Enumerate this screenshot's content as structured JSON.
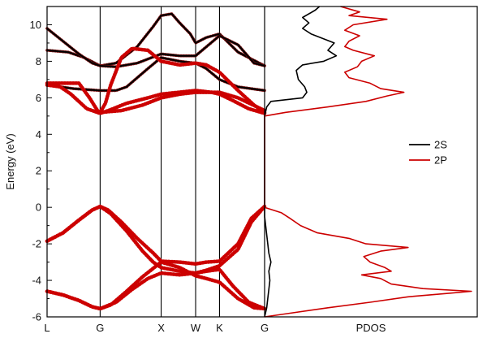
{
  "chart_data": [
    {
      "type": "line",
      "panel": "band-structure",
      "ylabel": "Energy (eV)",
      "ylim": [
        -6,
        11
      ],
      "y_ticks": [
        -6,
        -4,
        -2,
        0,
        2,
        4,
        6,
        8,
        10
      ],
      "k_points": [
        "L",
        "G",
        "X",
        "W",
        "K",
        "G"
      ],
      "x": [
        0,
        1,
        2.15,
        2.8,
        3.25,
        4.1
      ],
      "series": [
        {
          "color": "#000000",
          "points": [
            [
              0,
              8.6
            ],
            [
              0.4,
              8.5
            ],
            [
              0.7,
              8.2
            ],
            [
              1,
              7.75
            ],
            [
              1.3,
              7.9
            ],
            [
              1.7,
              8.8
            ],
            [
              2.0,
              9.9
            ],
            [
              2.15,
              10.5
            ],
            [
              2.35,
              10.6
            ],
            [
              2.5,
              10.1
            ],
            [
              2.7,
              9.5
            ],
            [
              2.8,
              9.0
            ],
            [
              3.0,
              9.3
            ],
            [
              3.25,
              9.5
            ],
            [
              3.6,
              8.5
            ],
            [
              4.1,
              7.75
            ]
          ]
        },
        {
          "color": "#000000",
          "points": [
            [
              0,
              9.8
            ],
            [
              0.3,
              9.1
            ],
            [
              0.6,
              8.4
            ],
            [
              0.85,
              7.9
            ],
            [
              1,
              7.75
            ],
            [
              1.3,
              7.7
            ],
            [
              1.7,
              7.9
            ],
            [
              2.15,
              8.4
            ],
            [
              2.5,
              8.3
            ],
            [
              2.8,
              8.3
            ],
            [
              3.25,
              9.4
            ],
            [
              3.6,
              8.9
            ],
            [
              3.9,
              7.9
            ],
            [
              4.1,
              7.75
            ]
          ]
        },
        {
          "color": "#000000",
          "points": [
            [
              0,
              6.7
            ],
            [
              0.5,
              6.5
            ],
            [
              1,
              6.4
            ],
            [
              1.3,
              6.4
            ],
            [
              1.5,
              6.6
            ],
            [
              1.9,
              7.6
            ],
            [
              2.15,
              8.2
            ],
            [
              2.5,
              8.0
            ],
            [
              2.8,
              7.9
            ],
            [
              3.0,
              7.6
            ],
            [
              3.25,
              7.0
            ],
            [
              3.6,
              6.6
            ],
            [
              4.1,
              6.4
            ]
          ]
        },
        {
          "color": "#cc0000",
          "points": [
            [
              0,
              6.7
            ],
            [
              0.25,
              6.6
            ],
            [
              0.45,
              6.2
            ],
            [
              0.75,
              5.4
            ],
            [
              1,
              5.15
            ],
            [
              1.2,
              5.35
            ],
            [
              1.5,
              5.7
            ],
            [
              1.9,
              6.0
            ],
            [
              2.15,
              6.2
            ],
            [
              2.8,
              6.4
            ],
            [
              3.1,
              6.3
            ],
            [
              3.25,
              6.2
            ],
            [
              3.5,
              5.85
            ],
            [
              3.8,
              5.4
            ],
            [
              4.1,
              5.15
            ]
          ]
        },
        {
          "color": "#cc0000",
          "points": [
            [
              0,
              6.8
            ],
            [
              0.3,
              6.8
            ],
            [
              0.6,
              6.8
            ],
            [
              0.8,
              6.0
            ],
            [
              0.95,
              5.3
            ],
            [
              1,
              5.2
            ],
            [
              1.1,
              5.7
            ],
            [
              1.2,
              6.7
            ],
            [
              1.4,
              8.2
            ],
            [
              1.6,
              8.7
            ],
            [
              1.9,
              8.6
            ],
            [
              2.15,
              8.0
            ],
            [
              2.5,
              7.8
            ],
            [
              2.8,
              7.9
            ],
            [
              3.0,
              7.8
            ],
            [
              3.25,
              7.4
            ],
            [
              3.6,
              6.4
            ],
            [
              3.9,
              5.6
            ],
            [
              4.1,
              5.2
            ]
          ]
        },
        {
          "color": "#cc0000",
          "points": [
            [
              1,
              5.2
            ],
            [
              1.4,
              5.3
            ],
            [
              1.8,
              5.6
            ],
            [
              2.15,
              6.0
            ],
            [
              2.5,
              6.2
            ],
            [
              2.8,
              6.3
            ],
            [
              3.25,
              6.3
            ],
            [
              3.6,
              6.0
            ],
            [
              4.1,
              5.3
            ]
          ]
        },
        {
          "color": "#cc0000",
          "points": [
            [
              0,
              -1.85
            ],
            [
              0.3,
              -1.4
            ],
            [
              0.6,
              -0.7
            ],
            [
              0.85,
              -0.15
            ],
            [
              1,
              0.05
            ],
            [
              1.15,
              -0.15
            ],
            [
              1.4,
              -0.8
            ],
            [
              1.7,
              -1.7
            ],
            [
              2.0,
              -2.5
            ],
            [
              2.15,
              -2.95
            ],
            [
              2.5,
              -3.0
            ],
            [
              2.8,
              -3.1
            ],
            [
              3.0,
              -3.0
            ],
            [
              3.25,
              -2.95
            ],
            [
              3.6,
              -2.0
            ],
            [
              3.85,
              -0.6
            ],
            [
              4.1,
              0.05
            ]
          ]
        },
        {
          "color": "#cc0000",
          "points": [
            [
              0,
              -1.85
            ],
            [
              0.3,
              -1.4
            ],
            [
              0.6,
              -0.7
            ],
            [
              0.85,
              -0.15
            ],
            [
              1,
              0.05
            ],
            [
              1.2,
              -0.35
            ],
            [
              1.5,
              -1.3
            ],
            [
              1.8,
              -2.4
            ],
            [
              2.0,
              -3.0
            ],
            [
              2.15,
              -3.3
            ],
            [
              2.5,
              -3.5
            ],
            [
              2.8,
              -3.6
            ],
            [
              3.0,
              -3.45
            ],
            [
              3.25,
              -3.2
            ],
            [
              3.6,
              -2.3
            ],
            [
              3.85,
              -0.8
            ],
            [
              4.1,
              0.05
            ]
          ]
        },
        {
          "color": "#cc0000",
          "points": [
            [
              0,
              -4.6
            ],
            [
              0.3,
              -4.8
            ],
            [
              0.6,
              -5.1
            ],
            [
              0.85,
              -5.45
            ],
            [
              1,
              -5.55
            ],
            [
              1.3,
              -5.2
            ],
            [
              1.6,
              -4.5
            ],
            [
              1.9,
              -3.9
            ],
            [
              2.15,
              -3.6
            ],
            [
              2.5,
              -3.7
            ],
            [
              2.8,
              -3.6
            ],
            [
              3.0,
              -3.5
            ],
            [
              3.25,
              -3.4
            ],
            [
              3.5,
              -4.3
            ],
            [
              3.8,
              -5.2
            ],
            [
              4.1,
              -5.55
            ]
          ]
        },
        {
          "color": "#cc0000",
          "points": [
            [
              0,
              -4.6
            ],
            [
              0.3,
              -4.8
            ],
            [
              0.6,
              -5.1
            ],
            [
              0.85,
              -5.45
            ],
            [
              1,
              -5.55
            ],
            [
              1.2,
              -5.35
            ],
            [
              1.5,
              -4.6
            ],
            [
              1.8,
              -3.8
            ],
            [
              2.15,
              -3.0
            ],
            [
              2.5,
              -3.3
            ],
            [
              2.8,
              -3.75
            ],
            [
              3.0,
              -3.9
            ],
            [
              3.25,
              -4.1
            ],
            [
              3.6,
              -5.0
            ],
            [
              3.9,
              -5.5
            ],
            [
              4.1,
              -5.55
            ]
          ]
        }
      ]
    },
    {
      "type": "line",
      "panel": "pdos",
      "xlabel": "PDOS",
      "legend_position": "right",
      "series": [
        {
          "name": "2S",
          "color": "#000000",
          "points": [
            [
              -6,
              0.0
            ],
            [
              -5.5,
              0.01
            ],
            [
              -5,
              0.015
            ],
            [
              -4.5,
              0.02
            ],
            [
              -4,
              0.025
            ],
            [
              -3.5,
              0.02
            ],
            [
              -3,
              0.03
            ],
            [
              -2.5,
              0.02
            ],
            [
              -2,
              0.015
            ],
            [
              -1.5,
              0.01
            ],
            [
              -1,
              0.005
            ],
            [
              -0.5,
              0.0
            ],
            [
              0,
              0.0
            ],
            [
              5,
              0.0
            ],
            [
              5.5,
              0.01
            ],
            [
              5.8,
              0.03
            ],
            [
              6.0,
              0.18
            ],
            [
              6.3,
              0.2
            ],
            [
              6.6,
              0.19
            ],
            [
              7.0,
              0.16
            ],
            [
              7.5,
              0.15
            ],
            [
              7.8,
              0.18
            ],
            [
              8.0,
              0.28
            ],
            [
              8.3,
              0.34
            ],
            [
              8.6,
              0.3
            ],
            [
              9.0,
              0.33
            ],
            [
              9.5,
              0.22
            ],
            [
              9.8,
              0.18
            ],
            [
              10.1,
              0.21
            ],
            [
              10.4,
              0.18
            ],
            [
              10.8,
              0.24
            ],
            [
              11,
              0.26
            ]
          ]
        },
        {
          "name": "2P",
          "color": "#cc0000",
          "points": [
            [
              -6,
              0.0
            ],
            [
              -5.8,
              0.12
            ],
            [
              -5.5,
              0.3
            ],
            [
              -5.2,
              0.5
            ],
            [
              -4.9,
              0.68
            ],
            [
              -4.7,
              0.88
            ],
            [
              -4.6,
              0.98
            ],
            [
              -4.45,
              0.75
            ],
            [
              -4.2,
              0.6
            ],
            [
              -3.9,
              0.55
            ],
            [
              -3.7,
              0.46
            ],
            [
              -3.5,
              0.6
            ],
            [
              -3.3,
              0.57
            ],
            [
              -3.0,
              0.5
            ],
            [
              -2.7,
              0.47
            ],
            [
              -2.4,
              0.55
            ],
            [
              -2.2,
              0.68
            ],
            [
              -2.0,
              0.48
            ],
            [
              -1.7,
              0.4
            ],
            [
              -1.4,
              0.25
            ],
            [
              -1.0,
              0.17
            ],
            [
              -0.6,
              0.12
            ],
            [
              -0.3,
              0.08
            ],
            [
              0,
              0.0
            ],
            [
              5.0,
              0.0
            ],
            [
              5.2,
              0.1
            ],
            [
              5.5,
              0.3
            ],
            [
              5.8,
              0.48
            ],
            [
              6.1,
              0.58
            ],
            [
              6.3,
              0.66
            ],
            [
              6.5,
              0.55
            ],
            [
              6.8,
              0.5
            ],
            [
              7.1,
              0.4
            ],
            [
              7.4,
              0.38
            ],
            [
              7.7,
              0.44
            ],
            [
              8.0,
              0.46
            ],
            [
              8.3,
              0.52
            ],
            [
              8.6,
              0.42
            ],
            [
              8.8,
              0.38
            ],
            [
              9.1,
              0.4
            ],
            [
              9.4,
              0.45
            ],
            [
              9.7,
              0.38
            ],
            [
              10.0,
              0.42
            ],
            [
              10.3,
              0.58
            ],
            [
              10.5,
              0.4
            ],
            [
              10.7,
              0.45
            ],
            [
              11,
              0.36
            ]
          ]
        }
      ]
    }
  ],
  "icons": {
    "legend_2s_swatch": "black-line",
    "legend_2p_swatch": "red-line"
  }
}
